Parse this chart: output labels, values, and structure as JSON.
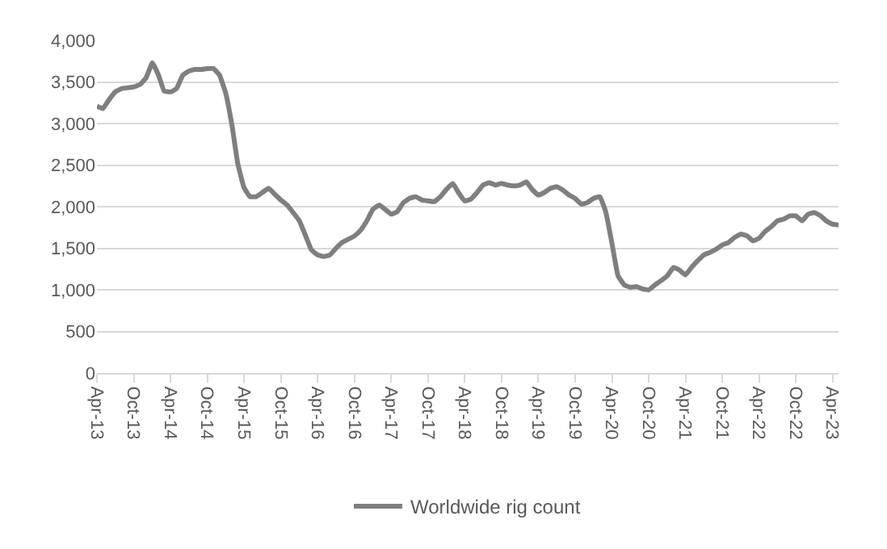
{
  "chart_data": {
    "type": "line",
    "x": [
      "2013-04",
      "2013-05",
      "2013-06",
      "2013-07",
      "2013-08",
      "2013-09",
      "2013-10",
      "2013-11",
      "2013-12",
      "2014-01",
      "2014-02",
      "2014-03",
      "2014-04",
      "2014-05",
      "2014-06",
      "2014-07",
      "2014-08",
      "2014-09",
      "2014-10",
      "2014-11",
      "2014-12",
      "2015-01",
      "2015-02",
      "2015-03",
      "2015-04",
      "2015-05",
      "2015-06",
      "2015-07",
      "2015-08",
      "2015-09",
      "2015-10",
      "2015-11",
      "2015-12",
      "2016-01",
      "2016-02",
      "2016-03",
      "2016-04",
      "2016-05",
      "2016-06",
      "2016-07",
      "2016-08",
      "2016-09",
      "2016-10",
      "2016-11",
      "2016-12",
      "2017-01",
      "2017-02",
      "2017-03",
      "2017-04",
      "2017-05",
      "2017-06",
      "2017-07",
      "2017-08",
      "2017-09",
      "2017-10",
      "2017-11",
      "2017-12",
      "2018-01",
      "2018-02",
      "2018-03",
      "2018-04",
      "2018-05",
      "2018-06",
      "2018-07",
      "2018-08",
      "2018-09",
      "2018-10",
      "2018-11",
      "2018-12",
      "2019-01",
      "2019-02",
      "2019-03",
      "2019-04",
      "2019-05",
      "2019-06",
      "2019-07",
      "2019-08",
      "2019-09",
      "2019-10",
      "2019-11",
      "2019-12",
      "2020-01",
      "2020-02",
      "2020-03",
      "2020-04",
      "2020-05",
      "2020-06",
      "2020-07",
      "2020-08",
      "2020-09",
      "2020-10",
      "2020-11",
      "2020-12",
      "2021-01",
      "2021-02",
      "2021-03",
      "2021-04",
      "2021-05",
      "2021-06",
      "2021-07",
      "2021-08",
      "2021-09",
      "2021-10",
      "2021-11",
      "2021-12",
      "2022-01",
      "2022-02",
      "2022-03",
      "2022-04",
      "2022-05",
      "2022-06",
      "2022-07",
      "2022-08",
      "2022-09",
      "2022-10",
      "2022-11",
      "2022-12",
      "2023-01",
      "2023-02",
      "2023-03",
      "2023-04",
      "2023-05"
    ],
    "series": [
      {
        "name": "Worldwide rig count",
        "color": "#7f7f7f",
        "values": [
          3210,
          3180,
          3290,
          3380,
          3420,
          3430,
          3440,
          3470,
          3550,
          3730,
          3580,
          3390,
          3380,
          3420,
          3580,
          3630,
          3650,
          3650,
          3660,
          3660,
          3580,
          3360,
          2970,
          2520,
          2230,
          2120,
          2120,
          2170,
          2220,
          2150,
          2080,
          2020,
          1930,
          1830,
          1650,
          1480,
          1420,
          1400,
          1420,
          1500,
          1570,
          1610,
          1650,
          1720,
          1830,
          1970,
          2020,
          1970,
          1910,
          1940,
          2050,
          2100,
          2120,
          2080,
          2070,
          2060,
          2120,
          2210,
          2280,
          2170,
          2070,
          2090,
          2170,
          2260,
          2290,
          2260,
          2280,
          2260,
          2250,
          2260,
          2300,
          2210,
          2140,
          2170,
          2220,
          2240,
          2200,
          2140,
          2100,
          2030,
          2050,
          2100,
          2120,
          1940,
          1560,
          1170,
          1060,
          1030,
          1040,
          1010,
          1000,
          1060,
          1110,
          1170,
          1270,
          1240,
          1180,
          1270,
          1350,
          1420,
          1450,
          1490,
          1540,
          1570,
          1630,
          1670,
          1650,
          1590,
          1620,
          1700,
          1760,
          1830,
          1850,
          1890,
          1890,
          1830,
          1910,
          1930,
          1890,
          1830,
          1790,
          1780
        ]
      }
    ],
    "xlim": [
      "2013-04",
      "2023-05"
    ],
    "xticks": [
      {
        "value": "2013-04",
        "label": "Apr-13"
      },
      {
        "value": "2013-10",
        "label": "Oct-13"
      },
      {
        "value": "2014-04",
        "label": "Apr-14"
      },
      {
        "value": "2014-10",
        "label": "Oct-14"
      },
      {
        "value": "2015-04",
        "label": "Apr-15"
      },
      {
        "value": "2015-10",
        "label": "Oct-15"
      },
      {
        "value": "2016-04",
        "label": "Apr-16"
      },
      {
        "value": "2016-10",
        "label": "Oct-16"
      },
      {
        "value": "2017-04",
        "label": "Apr-17"
      },
      {
        "value": "2017-10",
        "label": "Oct-17"
      },
      {
        "value": "2018-04",
        "label": "Apr-18"
      },
      {
        "value": "2018-10",
        "label": "Oct-18"
      },
      {
        "value": "2019-04",
        "label": "Apr-19"
      },
      {
        "value": "2019-10",
        "label": "Oct-19"
      },
      {
        "value": "2020-04",
        "label": "Apr-20"
      },
      {
        "value": "2020-10",
        "label": "Oct-20"
      },
      {
        "value": "2021-04",
        "label": "Apr-21"
      },
      {
        "value": "2021-10",
        "label": "Oct-21"
      },
      {
        "value": "2022-04",
        "label": "Apr-22"
      },
      {
        "value": "2022-10",
        "label": "Oct-22"
      },
      {
        "value": "2023-04",
        "label": "Apr-23"
      }
    ],
    "ylim": [
      0,
      4000
    ],
    "yticks": [
      {
        "value": 0,
        "label": "0"
      },
      {
        "value": 500,
        "label": "500"
      },
      {
        "value": 1000,
        "label": "1,000"
      },
      {
        "value": 1500,
        "label": "1,500"
      },
      {
        "value": 2000,
        "label": "2,000"
      },
      {
        "value": 2500,
        "label": "2,500"
      },
      {
        "value": 3000,
        "label": "3,000"
      },
      {
        "value": 3500,
        "label": "3,500"
      },
      {
        "value": 4000,
        "label": "4,000"
      }
    ],
    "grid": "y",
    "legend": "bottom",
    "marker": "none",
    "line_style": "solid"
  }
}
